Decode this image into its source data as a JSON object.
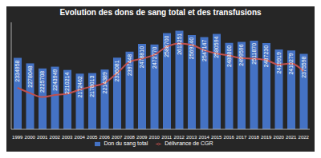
{
  "chart_data": {
    "type": "bar",
    "title": "Evolution des dons de sang total et des transfusions",
    "categories": [
      "1999",
      "2000",
      "2001",
      "2002",
      "2003",
      "2004",
      "2005",
      "2006",
      "2007",
      "2008",
      "2009",
      "2010",
      "2011",
      "2012",
      "2013",
      "2014",
      "2015",
      "2016",
      "2017",
      "2018",
      "2019",
      "2020",
      "2021",
      "2022"
    ],
    "series": [
      {
        "name": "Don du sang total",
        "type": "bar",
        "color": "#4472c4",
        "data_labels": true,
        "values": [
          2334958,
          2278048,
          2225708,
          2243949,
          2210214,
          2172462,
          2178013,
          2214389,
          2336081,
          2397448,
          2478810,
          2472770,
          2588700,
          2613251,
          2569140,
          2547147,
          2580594,
          2488800,
          2499596,
          2511870,
          2487230,
          2419919,
          2410279,
          2375598
        ]
      },
      {
        "name": "Délivrance de CGR",
        "type": "line",
        "color": "#c0504d",
        "values": [
          2027000,
          1973000,
          1932000,
          1953000,
          1966000,
          2007000,
          2041000,
          2075000,
          2176000,
          2292000,
          2326000,
          2366000,
          2448000,
          2482000,
          2468000,
          2414000,
          2380000,
          2359000,
          2332000,
          2326000,
          2312000,
          2265000,
          2278000,
          2197000
        ]
      }
    ],
    "ylim": [
      1600000,
      2700000
    ],
    "tick_labels": "x",
    "grid": false,
    "legend": "bottom"
  }
}
